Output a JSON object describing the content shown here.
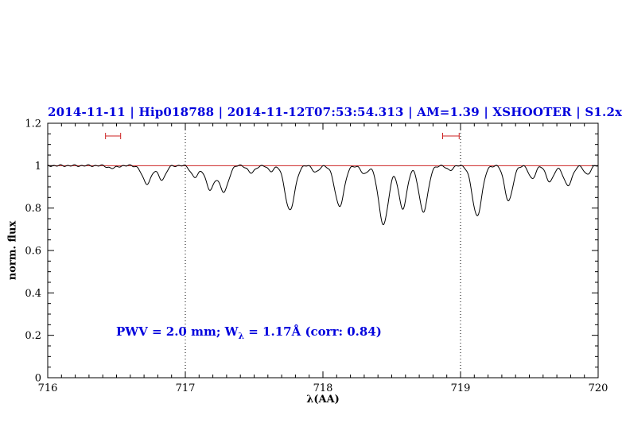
{
  "chart_data": {
    "type": "line",
    "title": "2014-11-11 | Hip018788 | 2014-11-12T07:53:54.313 | AM=1.39 | XSHOOTER | S1.2x11",
    "xlabel": "λ(AA)",
    "ylabel": "norm. flux",
    "xlim": [
      716,
      720
    ],
    "ylim": [
      0,
      1.2
    ],
    "x_ticks": [
      716,
      717,
      718,
      719,
      720
    ],
    "x_tick_labels": [
      "716",
      "717",
      "718",
      "719",
      "720"
    ],
    "y_ticks": [
      0,
      0.2,
      0.4,
      0.6,
      0.8,
      1,
      1.2
    ],
    "y_tick_labels": [
      "0",
      "0.2",
      "0.4",
      "0.6",
      "0.8",
      "1",
      "1.2"
    ],
    "x_minor_step": 0.1,
    "y_minor_step": 0.05,
    "grid": false,
    "legend": false,
    "continuum_level": 1.0,
    "dotted_vlines": [
      717,
      719
    ],
    "telluric_markers": {
      "y": 1.14,
      "ranges": [
        [
          716.42,
          716.53
        ],
        [
          718.87,
          718.99
        ]
      ]
    },
    "absorption_lines": [
      {
        "center": 716.47,
        "depth": 0.012,
        "sigma": 0.03
      },
      {
        "center": 716.72,
        "depth": 0.085,
        "sigma": 0.032
      },
      {
        "center": 716.83,
        "depth": 0.065,
        "sigma": 0.028
      },
      {
        "center": 717.07,
        "depth": 0.055,
        "sigma": 0.028
      },
      {
        "center": 717.18,
        "depth": 0.115,
        "sigma": 0.03
      },
      {
        "center": 717.28,
        "depth": 0.125,
        "sigma": 0.032
      },
      {
        "center": 717.48,
        "depth": 0.035,
        "sigma": 0.025
      },
      {
        "center": 717.62,
        "depth": 0.025,
        "sigma": 0.022
      },
      {
        "center": 717.76,
        "depth": 0.21,
        "sigma": 0.035
      },
      {
        "center": 717.95,
        "depth": 0.03,
        "sigma": 0.024
      },
      {
        "center": 718.12,
        "depth": 0.19,
        "sigma": 0.034
      },
      {
        "center": 718.3,
        "depth": 0.04,
        "sigma": 0.024
      },
      {
        "center": 718.44,
        "depth": 0.275,
        "sigma": 0.036
      },
      {
        "center": 718.58,
        "depth": 0.205,
        "sigma": 0.03
      },
      {
        "center": 718.73,
        "depth": 0.215,
        "sigma": 0.033
      },
      {
        "center": 718.92,
        "depth": 0.02,
        "sigma": 0.025
      },
      {
        "center": 719.12,
        "depth": 0.235,
        "sigma": 0.035
      },
      {
        "center": 719.35,
        "depth": 0.165,
        "sigma": 0.03
      },
      {
        "center": 719.52,
        "depth": 0.06,
        "sigma": 0.025
      },
      {
        "center": 719.65,
        "depth": 0.075,
        "sigma": 0.028
      },
      {
        "center": 719.78,
        "depth": 0.095,
        "sigma": 0.03
      },
      {
        "center": 719.92,
        "depth": 0.04,
        "sigma": 0.024
      }
    ],
    "noise": [
      {
        "amp": 0.003,
        "freq": 125,
        "phase": 0.0
      },
      {
        "amp": 0.002,
        "freq": 63,
        "phase": 1.3
      }
    ],
    "sample_step": 0.004
  },
  "annotation": {
    "prefix": "PWV = 2.0 mm; W",
    "subscript": "λ",
    "suffix": " = 1.17Å (corr: 0.84)"
  },
  "colors": {
    "accent_blue": "#0000dd",
    "spectrum": "#000000",
    "continuum": "#cc2222",
    "marker": "#cc2222",
    "axis": "#000000",
    "background": "#ffffff"
  }
}
